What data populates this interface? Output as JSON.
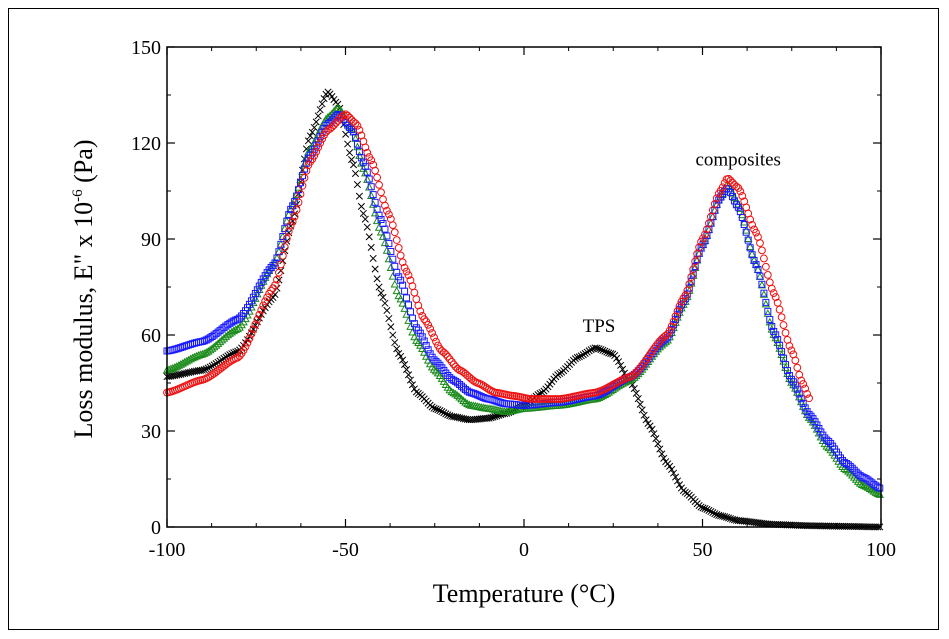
{
  "chart_data": {
    "type": "scatter",
    "title": "",
    "xlabel": "Temperature (°C)",
    "ylabel_parts": {
      "main": "Loss modulus, E\" x 10",
      "exp": "-6",
      "unit": " (Pa)"
    },
    "xlim": [
      -100,
      100
    ],
    "ylim": [
      0,
      150
    ],
    "xticks": [
      -100,
      -50,
      0,
      50,
      100
    ],
    "yticks": [
      0,
      30,
      60,
      90,
      120,
      150
    ],
    "grid": false,
    "legend": "none",
    "annotations": [
      {
        "text": "TPS",
        "x": 21,
        "y": 61
      },
      {
        "text": "composites",
        "x": 60,
        "y": 113
      }
    ],
    "series": [
      {
        "color": "#000000",
        "marker": "x",
        "x_end": 100,
        "points": [
          [
            -100,
            47
          ],
          [
            -90,
            49
          ],
          [
            -80,
            55
          ],
          [
            -70,
            72
          ],
          [
            -65,
            95
          ],
          [
            -60,
            122
          ],
          [
            -55,
            136
          ],
          [
            -52,
            132
          ],
          [
            -48,
            114
          ],
          [
            -45,
            98
          ],
          [
            -40,
            73
          ],
          [
            -35,
            54
          ],
          [
            -30,
            42
          ],
          [
            -25,
            37
          ],
          [
            -20,
            34.5
          ],
          [
            -15,
            33.5
          ],
          [
            -10,
            34
          ],
          [
            -5,
            35.5
          ],
          [
            0,
            38
          ],
          [
            5,
            42
          ],
          [
            10,
            48
          ],
          [
            15,
            53
          ],
          [
            20,
            56
          ],
          [
            25,
            54
          ],
          [
            30,
            45
          ],
          [
            35,
            32
          ],
          [
            40,
            20
          ],
          [
            45,
            11
          ],
          [
            50,
            6
          ],
          [
            55,
            3.5
          ],
          [
            60,
            2
          ],
          [
            70,
            0.8
          ],
          [
            80,
            0.4
          ],
          [
            90,
            0.2
          ],
          [
            100,
            0
          ]
        ]
      },
      {
        "color": "#1a8a1a",
        "marker": "triangle",
        "x_end": 100,
        "points": [
          [
            -100,
            49
          ],
          [
            -90,
            54
          ],
          [
            -80,
            62
          ],
          [
            -70,
            82
          ],
          [
            -65,
            100
          ],
          [
            -60,
            118
          ],
          [
            -55,
            128
          ],
          [
            -52,
            131
          ],
          [
            -48,
            124
          ],
          [
            -45,
            112
          ],
          [
            -40,
            92
          ],
          [
            -35,
            72
          ],
          [
            -30,
            58
          ],
          [
            -25,
            49
          ],
          [
            -20,
            42
          ],
          [
            -15,
            38
          ],
          [
            -10,
            37
          ],
          [
            -5,
            36
          ],
          [
            0,
            37
          ],
          [
            10,
            38
          ],
          [
            20,
            40
          ],
          [
            30,
            46
          ],
          [
            40,
            58
          ],
          [
            45,
            70
          ],
          [
            50,
            88
          ],
          [
            55,
            103
          ],
          [
            57,
            107
          ],
          [
            60,
            101
          ],
          [
            65,
            82
          ],
          [
            70,
            60
          ],
          [
            75,
            45
          ],
          [
            80,
            34
          ],
          [
            85,
            25
          ],
          [
            90,
            18
          ],
          [
            95,
            13
          ],
          [
            100,
            10
          ]
        ]
      },
      {
        "color": "#1a1aff",
        "marker": "square",
        "x_end": 100,
        "points": [
          [
            -100,
            55
          ],
          [
            -90,
            58
          ],
          [
            -80,
            65
          ],
          [
            -70,
            82
          ],
          [
            -65,
            100
          ],
          [
            -60,
            116
          ],
          [
            -55,
            126
          ],
          [
            -52,
            129
          ],
          [
            -48,
            124
          ],
          [
            -45,
            114
          ],
          [
            -40,
            96
          ],
          [
            -35,
            78
          ],
          [
            -30,
            62
          ],
          [
            -25,
            52
          ],
          [
            -20,
            46
          ],
          [
            -15,
            42
          ],
          [
            -10,
            40
          ],
          [
            -5,
            38.5
          ],
          [
            0,
            38
          ],
          [
            10,
            39
          ],
          [
            20,
            41
          ],
          [
            30,
            47
          ],
          [
            40,
            59
          ],
          [
            45,
            71
          ],
          [
            50,
            88
          ],
          [
            55,
            103
          ],
          [
            57,
            106
          ],
          [
            60,
            100
          ],
          [
            65,
            82
          ],
          [
            70,
            61
          ],
          [
            75,
            46
          ],
          [
            80,
            35
          ],
          [
            85,
            27
          ],
          [
            90,
            20
          ],
          [
            95,
            15.5
          ],
          [
            100,
            12
          ]
        ]
      },
      {
        "color": "#ee1111",
        "marker": "circle",
        "x_end": 80,
        "points": [
          [
            -100,
            42
          ],
          [
            -90,
            46
          ],
          [
            -80,
            53
          ],
          [
            -70,
            75
          ],
          [
            -65,
            95
          ],
          [
            -60,
            114
          ],
          [
            -55,
            124
          ],
          [
            -50,
            129
          ],
          [
            -47,
            126
          ],
          [
            -43,
            115
          ],
          [
            -38,
            98
          ],
          [
            -33,
            80
          ],
          [
            -28,
            65
          ],
          [
            -23,
            55
          ],
          [
            -18,
            49
          ],
          [
            -13,
            45
          ],
          [
            -8,
            42
          ],
          [
            -3,
            41
          ],
          [
            2,
            40
          ],
          [
            10,
            40
          ],
          [
            20,
            42
          ],
          [
            30,
            47
          ],
          [
            40,
            60
          ],
          [
            45,
            72
          ],
          [
            50,
            90
          ],
          [
            55,
            105
          ],
          [
            57,
            109
          ],
          [
            60,
            106
          ],
          [
            65,
            92
          ],
          [
            70,
            73
          ],
          [
            75,
            55
          ],
          [
            78,
            45
          ],
          [
            80,
            40
          ]
        ]
      }
    ]
  }
}
